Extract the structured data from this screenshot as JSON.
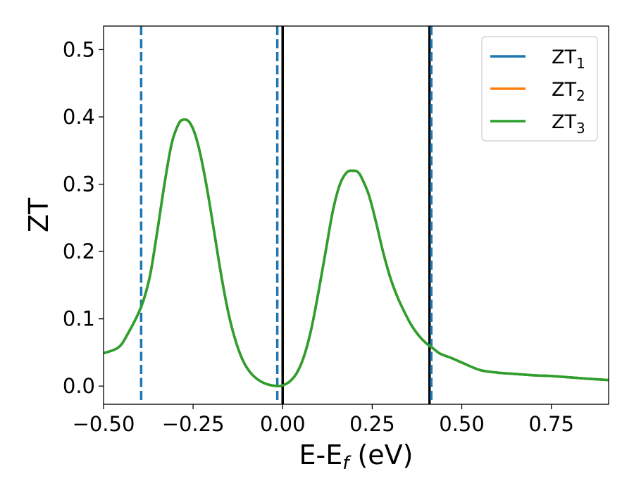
{
  "chart_data": {
    "type": "line",
    "xlabel": "E-E_f (eV)",
    "xlabel_parts": {
      "main": "E-E",
      "sub": "f",
      "tail": " (eV)"
    },
    "ylabel": "ZT",
    "xlim": [
      -0.5,
      0.91
    ],
    "ylim": [
      -0.027,
      0.535
    ],
    "x_ticks": [
      -0.5,
      -0.25,
      0.0,
      0.25,
      0.5,
      0.75
    ],
    "x_tick_labels": [
      "−0.50",
      "−0.25",
      "0.00",
      "0.25",
      "0.50",
      "0.75"
    ],
    "y_ticks": [
      0.0,
      0.1,
      0.2,
      0.3,
      0.4,
      0.5
    ],
    "y_tick_labels": [
      "0.0",
      "0.1",
      "0.2",
      "0.3",
      "0.4",
      "0.5"
    ],
    "grid": false,
    "legend_position": "top-right",
    "series": [
      {
        "name": "ZT_1",
        "label_main": "ZT",
        "label_sub": "1",
        "color": "#1f77b4"
      },
      {
        "name": "ZT_2",
        "label_main": "ZT",
        "label_sub": "2",
        "color": "#ff7f0e"
      },
      {
        "name": "ZT_3",
        "label_main": "ZT",
        "label_sub": "3",
        "color": "#2ca02c"
      }
    ],
    "curve": {
      "x": [
        -0.5,
        -0.47,
        -0.45,
        -0.43,
        -0.41,
        -0.39,
        -0.37,
        -0.35,
        -0.33,
        -0.31,
        -0.29,
        -0.275,
        -0.26,
        -0.245,
        -0.23,
        -0.21,
        -0.19,
        -0.17,
        -0.15,
        -0.13,
        -0.11,
        -0.09,
        -0.07,
        -0.05,
        -0.03,
        -0.01,
        0.0,
        0.02,
        0.04,
        0.06,
        0.08,
        0.1,
        0.12,
        0.14,
        0.16,
        0.18,
        0.2,
        0.21,
        0.22,
        0.24,
        0.26,
        0.28,
        0.3,
        0.32,
        0.34,
        0.36,
        0.38,
        0.4,
        0.42,
        0.44,
        0.47,
        0.5,
        0.55,
        0.6,
        0.65,
        0.7,
        0.75,
        0.8,
        0.85,
        0.91
      ],
      "y": [
        0.049,
        0.054,
        0.062,
        0.08,
        0.1,
        0.125,
        0.165,
        0.23,
        0.3,
        0.36,
        0.39,
        0.396,
        0.392,
        0.375,
        0.345,
        0.29,
        0.225,
        0.16,
        0.105,
        0.065,
        0.037,
        0.02,
        0.01,
        0.004,
        0.001,
        0.0,
        0.001,
        0.007,
        0.02,
        0.045,
        0.085,
        0.14,
        0.2,
        0.26,
        0.3,
        0.318,
        0.32,
        0.318,
        0.31,
        0.285,
        0.245,
        0.2,
        0.162,
        0.133,
        0.11,
        0.09,
        0.075,
        0.064,
        0.056,
        0.048,
        0.042,
        0.035,
        0.024,
        0.02,
        0.018,
        0.016,
        0.015,
        0.013,
        0.011,
        0.009
      ]
    },
    "dashed_vlines": [
      -0.395,
      -0.015,
      0.415
    ],
    "dashed_vline_color": "#1f77b4",
    "solid_vlines": [
      0.0,
      0.41
    ],
    "solid_vline_color": "#000000"
  }
}
